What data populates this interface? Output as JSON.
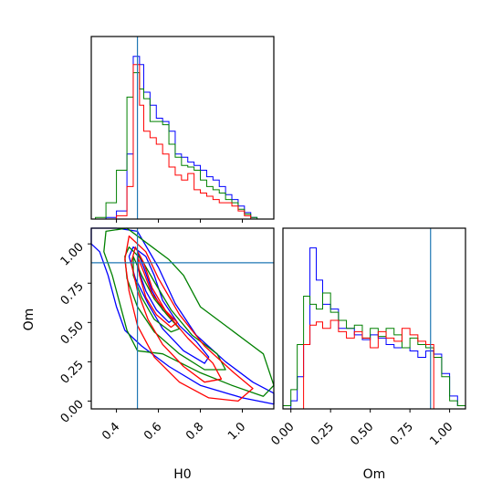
{
  "chart_data": {
    "type": "corner",
    "parameters": [
      "H0",
      "Om"
    ],
    "truths": {
      "H0": 0.5,
      "Om": 0.88
    },
    "series_colors": [
      "#0000ff",
      "#008000",
      "#ff0000"
    ],
    "truth_color": "#1f77b4",
    "ticks": {
      "H0": [
        "0.4",
        "0.6",
        "0.8",
        "1.0"
      ],
      "Om": [
        "0.00",
        "0.25",
        "0.50",
        "0.75",
        "1.00"
      ]
    },
    "xlabels": {
      "H0": "H0",
      "Om": "Om"
    },
    "ylabel": "Om",
    "ranges": {
      "H0": [
        0.28,
        1.15
      ],
      "Om": [
        -0.05,
        1.1
      ]
    },
    "hist_H0": {
      "bin_edges": [
        0.3,
        0.35,
        0.4,
        0.45,
        0.48,
        0.51,
        0.53,
        0.56,
        0.59,
        0.62,
        0.65,
        0.68,
        0.71,
        0.74,
        0.77,
        0.8,
        0.83,
        0.86,
        0.89,
        0.92,
        0.95,
        0.98,
        1.01,
        1.04,
        1.07,
        1.1
      ],
      "series": [
        {
          "color": "#0000ff",
          "values": [
            0.0,
            0.01,
            0.05,
            0.4,
            1.0,
            0.95,
            0.78,
            0.7,
            0.62,
            0.6,
            0.54,
            0.4,
            0.38,
            0.35,
            0.33,
            0.3,
            0.26,
            0.24,
            0.2,
            0.15,
            0.12,
            0.08,
            0.04,
            0.01,
            0.0
          ]
        },
        {
          "color": "#008000",
          "values": [
            0.01,
            0.1,
            0.3,
            0.75,
            0.9,
            0.8,
            0.74,
            0.6,
            0.6,
            0.58,
            0.46,
            0.38,
            0.33,
            0.32,
            0.3,
            0.24,
            0.2,
            0.18,
            0.16,
            0.12,
            0.1,
            0.06,
            0.03,
            0.01,
            0.0
          ]
        },
        {
          "color": "#ff0000",
          "values": [
            0.0,
            0.0,
            0.02,
            0.2,
            0.95,
            0.7,
            0.54,
            0.5,
            0.46,
            0.4,
            0.32,
            0.27,
            0.24,
            0.28,
            0.18,
            0.16,
            0.14,
            0.12,
            0.1,
            0.1,
            0.08,
            0.05,
            0.02,
            0.0,
            0.0
          ]
        }
      ]
    },
    "hist_Om": {
      "bin_edges": [
        -0.05,
        0.0,
        0.04,
        0.08,
        0.12,
        0.16,
        0.2,
        0.25,
        0.3,
        0.35,
        0.4,
        0.45,
        0.5,
        0.55,
        0.6,
        0.65,
        0.7,
        0.75,
        0.8,
        0.85,
        0.9,
        0.95,
        1.0,
        1.05,
        1.1
      ],
      "series": [
        {
          "color": "#0000ff",
          "values": [
            0.0,
            0.05,
            0.2,
            0.4,
            1.0,
            0.8,
            0.65,
            0.62,
            0.5,
            0.5,
            0.46,
            0.43,
            0.46,
            0.44,
            0.4,
            0.38,
            0.38,
            0.36,
            0.32,
            0.36,
            0.34,
            0.22,
            0.08,
            0.02
          ]
        },
        {
          "color": "#008000",
          "values": [
            0.02,
            0.12,
            0.4,
            0.7,
            0.65,
            0.62,
            0.72,
            0.6,
            0.55,
            0.5,
            0.52,
            0.44,
            0.5,
            0.45,
            0.5,
            0.46,
            0.38,
            0.44,
            0.4,
            0.38,
            0.32,
            0.2,
            0.05,
            0.02
          ]
        },
        {
          "color": "#ff0000",
          "values": [
            0.0,
            0.0,
            0.0,
            0.4,
            0.52,
            0.54,
            0.5,
            0.55,
            0.48,
            0.44,
            0.48,
            0.44,
            0.38,
            0.48,
            0.44,
            0.42,
            0.5,
            0.46,
            0.42,
            0.4,
            0.0,
            0.0,
            0.0,
            0.0
          ]
        }
      ]
    },
    "contours": [
      {
        "color": "#0000ff",
        "levels": [
          [
            [
              0.28,
              1.1
            ],
            [
              0.4,
              1.1
            ],
            [
              0.5,
              1.08
            ],
            [
              0.6,
              0.85
            ],
            [
              0.68,
              0.62
            ],
            [
              0.78,
              0.42
            ],
            [
              0.92,
              0.25
            ],
            [
              1.05,
              0.12
            ],
            [
              1.15,
              0.05
            ],
            [
              1.15,
              -0.02
            ],
            [
              1.0,
              0.02
            ],
            [
              0.8,
              0.1
            ],
            [
              0.65,
              0.22
            ],
            [
              0.52,
              0.35
            ],
            [
              0.44,
              0.45
            ],
            [
              0.4,
              0.6
            ],
            [
              0.36,
              0.8
            ],
            [
              0.32,
              0.95
            ],
            [
              0.28,
              1.0
            ]
          ],
          [
            [
              0.48,
              0.98
            ],
            [
              0.54,
              0.92
            ],
            [
              0.58,
              0.8
            ],
            [
              0.62,
              0.64
            ],
            [
              0.7,
              0.48
            ],
            [
              0.78,
              0.38
            ],
            [
              0.84,
              0.28
            ],
            [
              0.82,
              0.24
            ],
            [
              0.72,
              0.32
            ],
            [
              0.62,
              0.46
            ],
            [
              0.55,
              0.62
            ],
            [
              0.49,
              0.78
            ],
            [
              0.46,
              0.92
            ]
          ],
          [
            [
              0.5,
              0.95
            ],
            [
              0.53,
              0.85
            ],
            [
              0.57,
              0.7
            ],
            [
              0.62,
              0.58
            ],
            [
              0.67,
              0.52
            ],
            [
              0.65,
              0.5
            ],
            [
              0.59,
              0.58
            ],
            [
              0.54,
              0.7
            ],
            [
              0.5,
              0.85
            ]
          ]
        ]
      },
      {
        "color": "#008000",
        "levels": [
          [
            [
              0.35,
              1.08
            ],
            [
              0.45,
              1.1
            ],
            [
              0.55,
              1.0
            ],
            [
              0.65,
              0.9
            ],
            [
              0.72,
              0.8
            ],
            [
              0.8,
              0.6
            ],
            [
              0.95,
              0.45
            ],
            [
              1.1,
              0.3
            ],
            [
              1.15,
              0.1
            ],
            [
              1.1,
              0.03
            ],
            [
              0.95,
              0.1
            ],
            [
              0.8,
              0.18
            ],
            [
              0.62,
              0.3
            ],
            [
              0.5,
              0.32
            ],
            [
              0.45,
              0.45
            ],
            [
              0.42,
              0.6
            ],
            [
              0.38,
              0.8
            ],
            [
              0.34,
              0.95
            ]
          ],
          [
            [
              0.46,
              0.98
            ],
            [
              0.52,
              0.9
            ],
            [
              0.58,
              0.76
            ],
            [
              0.66,
              0.58
            ],
            [
              0.76,
              0.42
            ],
            [
              0.88,
              0.3
            ],
            [
              0.92,
              0.2
            ],
            [
              0.82,
              0.2
            ],
            [
              0.7,
              0.3
            ],
            [
              0.58,
              0.44
            ],
            [
              0.5,
              0.6
            ],
            [
              0.45,
              0.78
            ],
            [
              0.44,
              0.92
            ]
          ],
          [
            [
              0.48,
              0.92
            ],
            [
              0.52,
              0.8
            ],
            [
              0.58,
              0.65
            ],
            [
              0.64,
              0.55
            ],
            [
              0.7,
              0.46
            ],
            [
              0.66,
              0.44
            ],
            [
              0.58,
              0.52
            ],
            [
              0.52,
              0.66
            ],
            [
              0.48,
              0.8
            ]
          ]
        ]
      },
      {
        "color": "#ff0000",
        "levels": [
          [
            [
              0.46,
              1.05
            ],
            [
              0.54,
              0.95
            ],
            [
              0.6,
              0.78
            ],
            [
              0.7,
              0.55
            ],
            [
              0.82,
              0.35
            ],
            [
              0.96,
              0.18
            ],
            [
              1.05,
              0.08
            ],
            [
              0.98,
              0.0
            ],
            [
              0.84,
              0.02
            ],
            [
              0.7,
              0.12
            ],
            [
              0.58,
              0.28
            ],
            [
              0.5,
              0.48
            ],
            [
              0.46,
              0.7
            ],
            [
              0.44,
              0.9
            ]
          ],
          [
            [
              0.49,
              0.98
            ],
            [
              0.53,
              0.88
            ],
            [
              0.57,
              0.72
            ],
            [
              0.64,
              0.56
            ],
            [
              0.74,
              0.4
            ],
            [
              0.86,
              0.24
            ],
            [
              0.9,
              0.14
            ],
            [
              0.82,
              0.12
            ],
            [
              0.72,
              0.22
            ],
            [
              0.62,
              0.36
            ],
            [
              0.55,
              0.52
            ],
            [
              0.5,
              0.7
            ],
            [
              0.47,
              0.88
            ]
          ],
          [
            [
              0.5,
              0.92
            ],
            [
              0.53,
              0.82
            ],
            [
              0.57,
              0.68
            ],
            [
              0.63,
              0.58
            ],
            [
              0.69,
              0.5
            ],
            [
              0.66,
              0.47
            ],
            [
              0.59,
              0.55
            ],
            [
              0.54,
              0.66
            ],
            [
              0.51,
              0.8
            ]
          ]
        ]
      }
    ]
  }
}
